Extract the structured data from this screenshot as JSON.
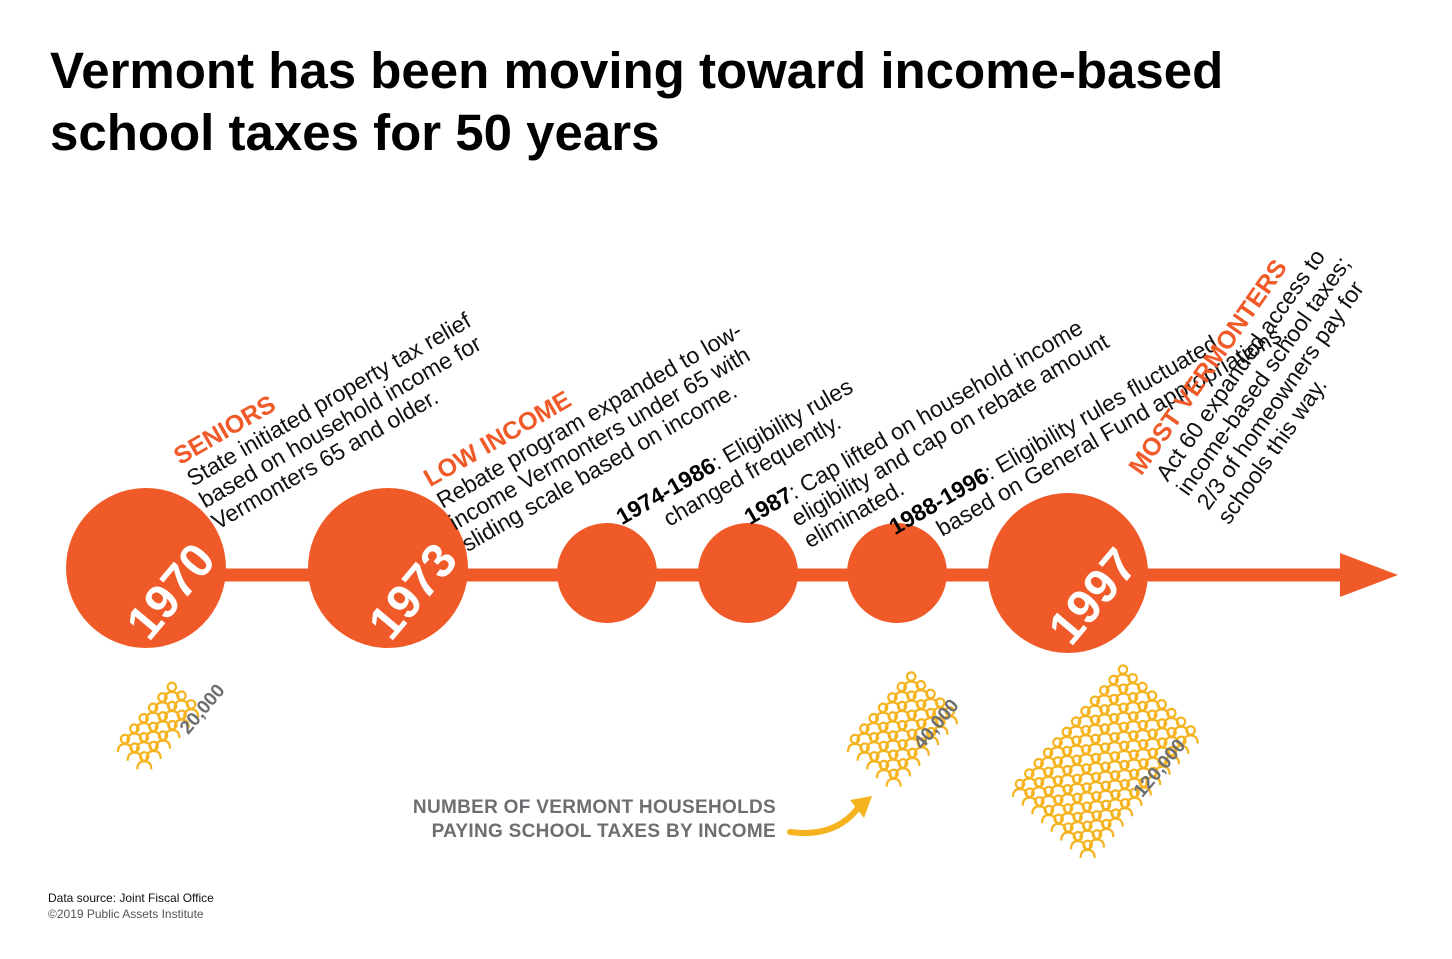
{
  "title": "Vermont has been moving toward income-based school taxes for 50 years",
  "colors": {
    "accent": "#f05a28",
    "people": "#f5b41f",
    "label_gray": "#6d6e71"
  },
  "milestones": {
    "m1970": {
      "year": "1970",
      "category": "SENIORS",
      "text_lines": [
        "State initiated property tax relief",
        "based on household income for",
        "Vermonters 65 and older."
      ]
    },
    "m1973": {
      "year": "1973",
      "category": "LOW INCOME",
      "text_lines": [
        "Rebate program expanded to low-",
        "income Vermonters under 65 with",
        "sliding scale based on income."
      ]
    },
    "m1974": {
      "period": "1974-1986",
      "text_first": ": Eligibility rules",
      "text_second": "changed frequently."
    },
    "m1987": {
      "period": "1987",
      "text_first": ": Cap lifted on household income",
      "text_second": "eligibility and cap on rebate amount",
      "text_third": "eliminated."
    },
    "m1988": {
      "period": "1988-1996",
      "text_first": ": Eligibility rules fluctuated",
      "text_second": "based on General Fund appropriations."
    },
    "m1997": {
      "year": "1997",
      "category": "MOST VERMONTERS",
      "text_lines": [
        "Act 60 expanded access to",
        "income-based school taxes;",
        "2/3 of homeowners pay for",
        "schools this way."
      ]
    }
  },
  "households": {
    "h1970": 20000,
    "h1970_label": "20,000",
    "h1988": 40000,
    "h1988_label": "40,000",
    "h1997": 120000,
    "h1997_label": "120,000"
  },
  "legend": {
    "line1": "NUMBER OF VERMONT HOUSEHOLDS",
    "line2": "PAYING SCHOOL TAXES BY INCOME"
  },
  "source": {
    "line1": "Data source: Joint Fiscal Office",
    "line2": "©2019 Public Assets Institute"
  }
}
